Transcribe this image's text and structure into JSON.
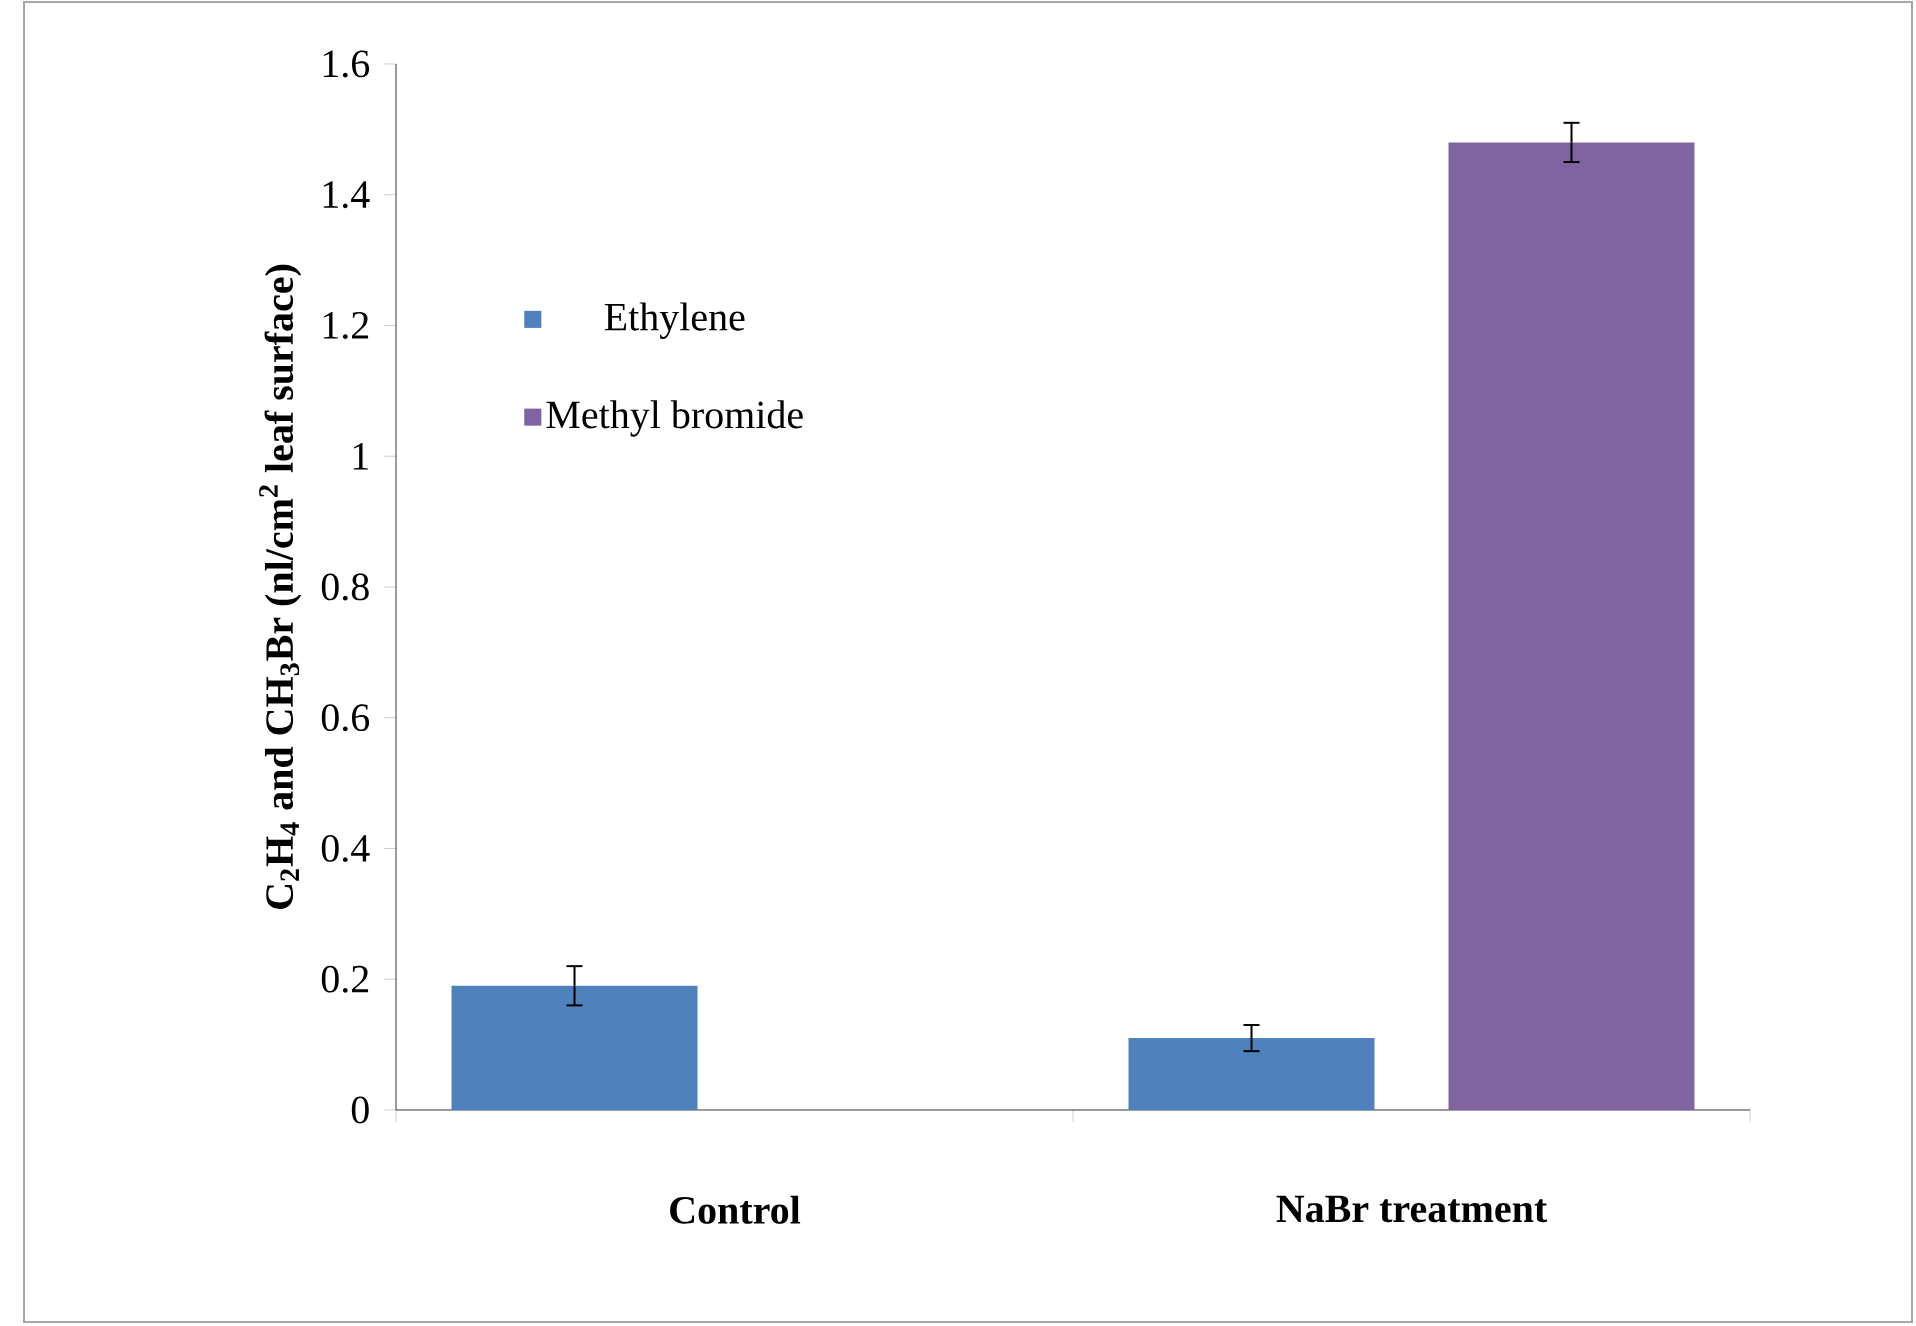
{
  "chart_data": {
    "type": "bar",
    "ylabel": "C$_{2}$H$_{4}$ and CH$_{3}$Br (nl/cm$^{2}$ leaf surface)",
    "categories": [
      "Control",
      "NaBr treatment"
    ],
    "series": [
      {
        "name": "Ethylene",
        "color": "#4f81bd",
        "values": [
          0.19,
          0.11
        ],
        "errors": [
          0.03,
          0.02
        ]
      },
      {
        "name": "Methyl bromide",
        "color": "#8064a2",
        "values": [
          null,
          1.48
        ],
        "errors": [
          null,
          0.03
        ]
      }
    ],
    "ylim": [
      0,
      1.6
    ],
    "yticks": [
      0,
      0.2,
      0.4,
      0.6,
      0.8,
      1,
      1.2,
      1.4,
      1.6
    ],
    "legend": "top left",
    "grid": false
  }
}
